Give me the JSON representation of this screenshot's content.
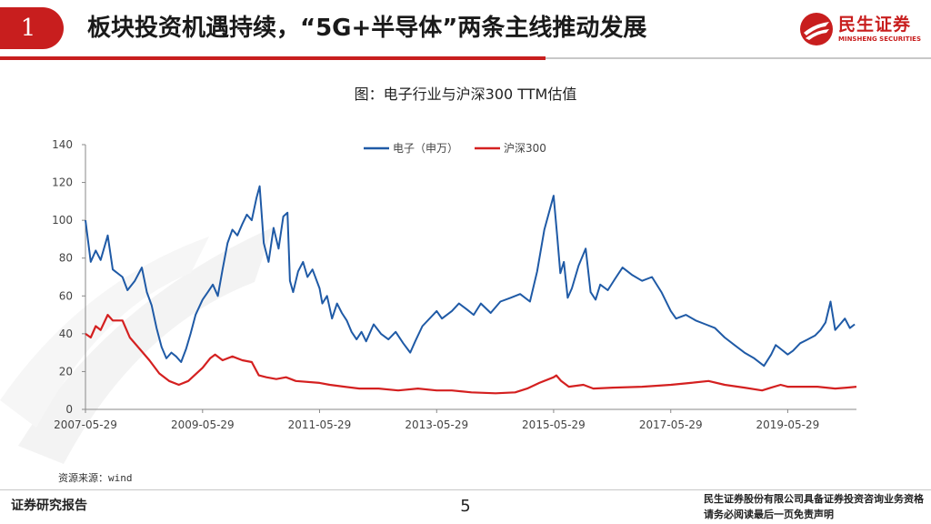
{
  "header": {
    "section_number": "1",
    "title": "板块投资机遇持续，“5G+半导体”两条主线推动发展",
    "logo_cn": "民生证券",
    "logo_en": "MINSHENG SECURITIES",
    "accent_color": "#c81e1e"
  },
  "chart_title": "图：电子行业与沪深300 TTM估值",
  "source_note": "资源来源：wind",
  "footer": {
    "report_label": "证券研究报告",
    "page_number": "5",
    "disclaimer_line1": "民生证券股份有限公司具备证券投资咨询业务资格",
    "disclaimer_line2": "请务必阅读最后一页免责声明"
  },
  "chart_data": {
    "type": "line",
    "title": "图：电子行业与沪深300 TTM估值",
    "x_tick_labels": [
      "2007-05-29",
      "2009-05-29",
      "2011-05-29",
      "2013-05-29",
      "2015-05-29",
      "2017-05-29",
      "2019-05-29"
    ],
    "xlim": [
      "2007-05-29",
      "2020-07-31"
    ],
    "ylim": [
      0,
      140
    ],
    "y_ticks": [
      0,
      20,
      40,
      60,
      80,
      100,
      120,
      140
    ],
    "grid": false,
    "legend_position": "top-center",
    "series": [
      {
        "name": "电子（申万）",
        "color": "#1f5aa6",
        "points": [
          [
            "2007-05-29",
            100
          ],
          [
            "2007-07-01",
            78
          ],
          [
            "2007-08-01",
            84
          ],
          [
            "2007-09-01",
            79
          ],
          [
            "2007-10-15",
            92
          ],
          [
            "2007-11-15",
            74
          ],
          [
            "2008-01-15",
            70
          ],
          [
            "2008-02-15",
            63
          ],
          [
            "2008-04-01",
            68
          ],
          [
            "2008-05-15",
            75
          ],
          [
            "2008-06-15",
            62
          ],
          [
            "2008-07-15",
            55
          ],
          [
            "2008-08-15",
            43
          ],
          [
            "2008-09-15",
            33
          ],
          [
            "2008-10-15",
            27
          ],
          [
            "2008-11-15",
            30
          ],
          [
            "2008-12-15",
            28
          ],
          [
            "2009-01-15",
            25
          ],
          [
            "2009-02-15",
            32
          ],
          [
            "2009-03-15",
            40
          ],
          [
            "2009-04-15",
            50
          ],
          [
            "2009-05-29",
            58
          ],
          [
            "2009-07-01",
            62
          ],
          [
            "2009-08-01",
            66
          ],
          [
            "2009-09-01",
            60
          ],
          [
            "2009-10-01",
            74
          ],
          [
            "2009-11-01",
            88
          ],
          [
            "2009-12-01",
            95
          ],
          [
            "2010-01-01",
            92
          ],
          [
            "2010-02-01",
            98
          ],
          [
            "2010-03-01",
            103
          ],
          [
            "2010-04-01",
            100
          ],
          [
            "2010-05-01",
            112
          ],
          [
            "2010-05-20",
            118
          ],
          [
            "2010-06-15",
            88
          ],
          [
            "2010-07-15",
            78
          ],
          [
            "2010-08-15",
            96
          ],
          [
            "2010-09-15",
            85
          ],
          [
            "2010-10-15",
            102
          ],
          [
            "2010-11-10",
            104
          ],
          [
            "2010-11-25",
            68
          ],
          [
            "2010-12-15",
            62
          ],
          [
            "2011-01-15",
            73
          ],
          [
            "2011-02-15",
            78
          ],
          [
            "2011-03-15",
            70
          ],
          [
            "2011-04-15",
            74
          ],
          [
            "2011-05-29",
            64
          ],
          [
            "2011-06-15",
            56
          ],
          [
            "2011-07-15",
            60
          ],
          [
            "2011-08-15",
            48
          ],
          [
            "2011-09-15",
            56
          ],
          [
            "2011-10-15",
            51
          ],
          [
            "2011-11-15",
            47
          ],
          [
            "2011-12-15",
            41
          ],
          [
            "2012-01-15",
            37
          ],
          [
            "2012-02-15",
            41
          ],
          [
            "2012-03-15",
            36
          ],
          [
            "2012-05-01",
            45
          ],
          [
            "2012-06-15",
            40
          ],
          [
            "2012-08-01",
            37
          ],
          [
            "2012-09-15",
            41
          ],
          [
            "2012-11-01",
            35
          ],
          [
            "2012-12-15",
            30
          ],
          [
            "2013-01-15",
            36
          ],
          [
            "2013-03-01",
            44
          ],
          [
            "2013-05-29",
            52
          ],
          [
            "2013-07-01",
            48
          ],
          [
            "2013-09-01",
            52
          ],
          [
            "2013-10-15",
            56
          ],
          [
            "2013-12-01",
            53
          ],
          [
            "2014-01-15",
            50
          ],
          [
            "2014-03-01",
            56
          ],
          [
            "2014-05-01",
            51
          ],
          [
            "2014-07-01",
            57
          ],
          [
            "2014-09-01",
            59
          ],
          [
            "2014-11-01",
            61
          ],
          [
            "2015-01-01",
            57
          ],
          [
            "2015-02-15",
            73
          ],
          [
            "2015-04-01",
            95
          ],
          [
            "2015-05-29",
            113
          ],
          [
            "2015-06-20",
            92
          ],
          [
            "2015-07-10",
            72
          ],
          [
            "2015-08-01",
            78
          ],
          [
            "2015-08-25",
            59
          ],
          [
            "2015-09-20",
            64
          ],
          [
            "2015-11-01",
            76
          ],
          [
            "2015-12-15",
            85
          ],
          [
            "2016-01-15",
            62
          ],
          [
            "2016-02-15",
            58
          ],
          [
            "2016-03-15",
            66
          ],
          [
            "2016-05-01",
            63
          ],
          [
            "2016-06-15",
            69
          ],
          [
            "2016-08-01",
            75
          ],
          [
            "2016-10-01",
            71
          ],
          [
            "2016-12-01",
            68
          ],
          [
            "2017-02-01",
            70
          ],
          [
            "2017-04-01",
            62
          ],
          [
            "2017-05-29",
            52
          ],
          [
            "2017-07-01",
            48
          ],
          [
            "2017-09-01",
            50
          ],
          [
            "2017-11-01",
            47
          ],
          [
            "2018-01-01",
            45
          ],
          [
            "2018-03-01",
            43
          ],
          [
            "2018-05-01",
            38
          ],
          [
            "2018-07-01",
            34
          ],
          [
            "2018-09-01",
            30
          ],
          [
            "2018-11-01",
            27
          ],
          [
            "2019-01-01",
            23
          ],
          [
            "2019-02-15",
            29
          ],
          [
            "2019-03-15",
            34
          ],
          [
            "2019-04-15",
            32
          ],
          [
            "2019-05-29",
            29
          ],
          [
            "2019-07-01",
            31
          ],
          [
            "2019-08-15",
            35
          ],
          [
            "2019-10-01",
            37
          ],
          [
            "2019-11-15",
            39
          ],
          [
            "2019-12-20",
            42
          ],
          [
            "2020-01-20",
            46
          ],
          [
            "2020-02-20",
            57
          ],
          [
            "2020-03-20",
            42
          ],
          [
            "2020-04-20",
            45
          ],
          [
            "2020-05-20",
            48
          ],
          [
            "2020-06-20",
            43
          ],
          [
            "2020-07-20",
            45
          ]
        ]
      },
      {
        "name": "沪深300",
        "color": "#d42020",
        "points": [
          [
            "2007-05-29",
            40
          ],
          [
            "2007-07-01",
            38
          ],
          [
            "2007-08-01",
            44
          ],
          [
            "2007-09-01",
            42
          ],
          [
            "2007-10-15",
            50
          ],
          [
            "2007-11-15",
            47
          ],
          [
            "2008-01-15",
            47
          ],
          [
            "2008-03-01",
            38
          ],
          [
            "2008-05-01",
            32
          ],
          [
            "2008-07-01",
            26
          ],
          [
            "2008-09-01",
            19
          ],
          [
            "2008-11-01",
            15
          ],
          [
            "2009-01-01",
            13
          ],
          [
            "2009-03-01",
            15
          ],
          [
            "2009-05-29",
            22
          ],
          [
            "2009-07-15",
            27
          ],
          [
            "2009-08-15",
            29
          ],
          [
            "2009-10-01",
            26
          ],
          [
            "2009-12-01",
            28
          ],
          [
            "2010-02-01",
            26
          ],
          [
            "2010-04-01",
            25
          ],
          [
            "2010-05-15",
            18
          ],
          [
            "2010-07-01",
            17
          ],
          [
            "2010-09-01",
            16
          ],
          [
            "2010-11-01",
            17
          ],
          [
            "2011-01-01",
            15
          ],
          [
            "2011-05-29",
            14
          ],
          [
            "2011-08-01",
            13
          ],
          [
            "2011-11-01",
            12
          ],
          [
            "2012-02-01",
            11
          ],
          [
            "2012-06-01",
            11
          ],
          [
            "2012-10-01",
            10
          ],
          [
            "2013-02-01",
            11
          ],
          [
            "2013-05-29",
            10
          ],
          [
            "2013-09-01",
            10
          ],
          [
            "2014-01-01",
            9
          ],
          [
            "2014-06-01",
            8.5
          ],
          [
            "2014-10-01",
            9
          ],
          [
            "2014-12-15",
            11
          ],
          [
            "2015-03-01",
            14
          ],
          [
            "2015-05-29",
            17
          ],
          [
            "2015-06-15",
            18
          ],
          [
            "2015-07-15",
            15
          ],
          [
            "2015-09-01",
            12
          ],
          [
            "2015-12-01",
            13
          ],
          [
            "2016-02-01",
            11
          ],
          [
            "2016-06-01",
            11.5
          ],
          [
            "2016-12-01",
            12
          ],
          [
            "2017-05-29",
            13
          ],
          [
            "2017-10-01",
            14
          ],
          [
            "2018-01-20",
            15
          ],
          [
            "2018-05-01",
            13
          ],
          [
            "2018-09-01",
            11.5
          ],
          [
            "2018-12-20",
            10
          ],
          [
            "2019-02-15",
            11.5
          ],
          [
            "2019-04-15",
            13
          ],
          [
            "2019-05-29",
            12
          ],
          [
            "2019-09-01",
            12
          ],
          [
            "2019-12-01",
            12
          ],
          [
            "2020-03-20",
            11
          ],
          [
            "2020-06-01",
            11.5
          ],
          [
            "2020-07-31",
            12
          ]
        ]
      }
    ]
  }
}
